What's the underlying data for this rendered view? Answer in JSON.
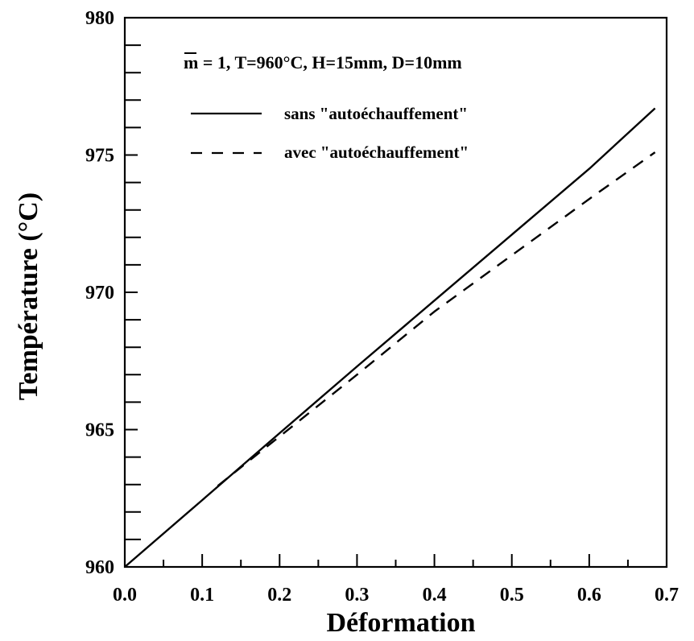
{
  "chart_data": {
    "type": "line",
    "title": "",
    "xlabel": "Déformation",
    "ylabel": "Température (°C)",
    "xlim": [
      0.0,
      0.7
    ],
    "ylim": [
      960,
      980
    ],
    "x_ticks": [
      0.0,
      0.1,
      0.2,
      0.3,
      0.4,
      0.5,
      0.6,
      0.7
    ],
    "x_tick_labels": [
      "0.0",
      "0.1",
      "0.2",
      "0.3",
      "0.4",
      "0.5",
      "0.6",
      "0.7"
    ],
    "y_ticks": [
      960,
      965,
      970,
      975,
      980
    ],
    "y_tick_labels": [
      "960",
      "965",
      "970",
      "975",
      "980"
    ],
    "grid": false,
    "legend_position": "top-left",
    "annotation": "m = 1, T=960°C, H=15mm, D=10mm",
    "annotation_prefix": "m",
    "annotation_rest": " = 1, T=960°C, H=15mm, D=10mm",
    "series": [
      {
        "name": "sans \"autoéchauffement\"",
        "style": "solid",
        "color": "#000000",
        "x": [
          0.0,
          0.1,
          0.2,
          0.3,
          0.4,
          0.5,
          0.6,
          0.685
        ],
        "y": [
          960.0,
          962.43,
          964.87,
          967.3,
          969.7,
          972.1,
          974.5,
          976.7
        ]
      },
      {
        "name": "avec \"autoéchauffement\"",
        "style": "dashed",
        "color": "#000000",
        "x": [
          0.12,
          0.2,
          0.3,
          0.4,
          0.5,
          0.6,
          0.685
        ],
        "y": [
          962.95,
          964.75,
          967.0,
          969.3,
          971.35,
          973.4,
          975.1
        ]
      }
    ]
  }
}
